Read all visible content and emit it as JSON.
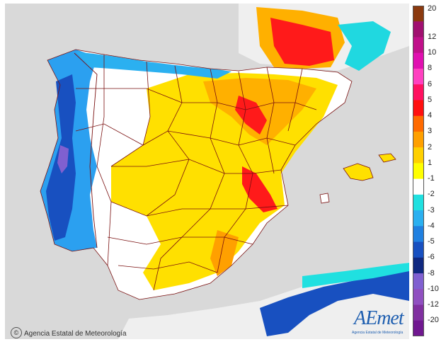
{
  "map": {
    "credit": "Agencia Estatal de Meteorología",
    "logo_text": "AEmet",
    "logo_subtitle": "Agencia Estatal de Meteorología"
  },
  "legend": {
    "labels": [
      "20",
      "12",
      "10",
      "8",
      "6",
      "5",
      "4",
      "3",
      "2",
      "1",
      "-1",
      "-2",
      "-3",
      "-4",
      "-5",
      "-6",
      "-8",
      "-10",
      "-12",
      "-20"
    ],
    "colors": [
      "#8b3a0f",
      "#a01070",
      "#c0108a",
      "#e010b0",
      "#ff40c0",
      "#ff1060",
      "#ff1010",
      "#ff6a00",
      "#ffa000",
      "#ffd000",
      "#ffff00",
      "#ffffff",
      "#20e0e0",
      "#2bb0f0",
      "#2080e0",
      "#1850c0",
      "#102880",
      "#8060d0",
      "#9050c0",
      "#8030a0",
      "#701890"
    ]
  },
  "colors": {
    "sea": "#d9d9d9",
    "land_neutral": "#ffffff",
    "border": "#7a1010"
  }
}
